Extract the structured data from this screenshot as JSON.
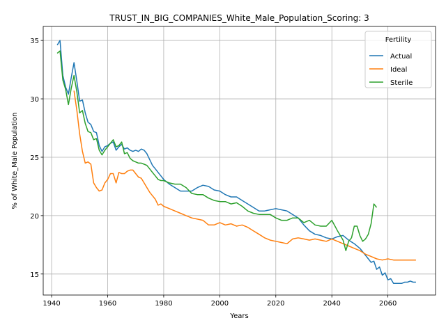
{
  "chart_data": {
    "type": "line",
    "title": "TRUST_IN_BIG_COMPANIES_White_Male_Population_Scoring: 3",
    "xlabel": "Years",
    "ylabel": "% of White_Male Population",
    "xlim": [
      1937,
      2077
    ],
    "ylim": [
      13.2,
      36.2
    ],
    "xticks": [
      1940,
      1960,
      1980,
      2000,
      2020,
      2040,
      2060
    ],
    "yticks": [
      15,
      20,
      25,
      30,
      35
    ],
    "grid": true,
    "legend": {
      "title": "Fertility",
      "placement": "top-right"
    },
    "series": [
      {
        "name": "Actual",
        "color": "#1f77b4",
        "x": [
          1942,
          1943,
          1944,
          1945,
          1946,
          1947,
          1948,
          1949,
          1950,
          1951,
          1952,
          1953,
          1954,
          1955,
          1956,
          1957,
          1958,
          1959,
          1960,
          1961,
          1962,
          1963,
          1964,
          1965,
          1966,
          1967,
          1968,
          1969,
          1970,
          1971,
          1972,
          1973,
          1974,
          1975,
          1976,
          1977,
          1978,
          1979,
          1980,
          1982,
          1984,
          1986,
          1988,
          1990,
          1992,
          1994,
          1996,
          1998,
          2000,
          2002,
          2004,
          2006,
          2008,
          2010,
          2012,
          2014,
          2016,
          2018,
          2020,
          2022,
          2024,
          2026,
          2028,
          2030,
          2032,
          2034,
          2036,
          2038,
          2040,
          2042,
          2044,
          2046,
          2048,
          2050,
          2052,
          2054,
          2055,
          2056,
          2057,
          2058,
          2059,
          2060,
          2061,
          2062,
          2063,
          2064,
          2065,
          2066,
          2067,
          2068,
          2069,
          2070
        ],
        "y": [
          34.6,
          35.0,
          32.0,
          31.0,
          30.4,
          31.8,
          33.1,
          31.5,
          29.8,
          29.9,
          28.8,
          28.0,
          27.8,
          27.2,
          27.1,
          26.0,
          25.5,
          25.9,
          26.0,
          26.2,
          26.3,
          25.6,
          25.9,
          26.1,
          25.7,
          25.8,
          25.6,
          25.5,
          25.6,
          25.5,
          25.7,
          25.6,
          25.3,
          24.8,
          24.3,
          24.0,
          23.7,
          23.4,
          23.1,
          22.7,
          22.4,
          22.1,
          22.1,
          22.1,
          22.4,
          22.6,
          22.5,
          22.2,
          22.1,
          21.8,
          21.6,
          21.6,
          21.3,
          21.0,
          20.7,
          20.4,
          20.4,
          20.5,
          20.6,
          20.5,
          20.4,
          20.1,
          19.8,
          19.2,
          18.7,
          18.4,
          18.3,
          18.1,
          18.0,
          18.2,
          18.3,
          17.9,
          17.6,
          17.2,
          16.6,
          16.0,
          16.1,
          15.4,
          15.6,
          14.9,
          15.1,
          14.5,
          14.6,
          14.2,
          14.2,
          14.2,
          14.2,
          14.3,
          14.3,
          14.4,
          14.3,
          14.3
        ]
      },
      {
        "name": "Ideal",
        "color": "#ff7f0e",
        "x": [
          1948,
          1949,
          1950,
          1951,
          1952,
          1953,
          1954,
          1955,
          1956,
          1957,
          1958,
          1959,
          1960,
          1961,
          1962,
          1963,
          1964,
          1965,
          1966,
          1967,
          1968,
          1969,
          1970,
          1971,
          1972,
          1973,
          1974,
          1975,
          1976,
          1977,
          1978,
          1979,
          1980,
          1982,
          1984,
          1986,
          1988,
          1990,
          1992,
          1994,
          1996,
          1998,
          2000,
          2002,
          2004,
          2006,
          2008,
          2010,
          2012,
          2014,
          2016,
          2018,
          2020,
          2022,
          2024,
          2026,
          2028,
          2030,
          2032,
          2034,
          2036,
          2038,
          2040,
          2042,
          2044,
          2046,
          2048,
          2050,
          2052,
          2054,
          2056,
          2058,
          2060,
          2062,
          2064,
          2066,
          2068,
          2070
        ],
        "y": [
          30.7,
          29.0,
          27.0,
          25.5,
          24.5,
          24.6,
          24.4,
          22.8,
          22.4,
          22.1,
          22.2,
          22.8,
          23.1,
          23.6,
          23.6,
          22.8,
          23.7,
          23.6,
          23.6,
          23.8,
          23.9,
          23.9,
          23.6,
          23.3,
          23.2,
          22.8,
          22.4,
          22.0,
          21.7,
          21.4,
          20.9,
          21.0,
          20.8,
          20.6,
          20.4,
          20.2,
          20.0,
          19.8,
          19.7,
          19.6,
          19.2,
          19.2,
          19.4,
          19.2,
          19.3,
          19.1,
          19.2,
          19.0,
          18.7,
          18.4,
          18.1,
          17.9,
          17.8,
          17.7,
          17.6,
          18.0,
          18.1,
          18.0,
          17.9,
          18.0,
          17.9,
          17.8,
          18.0,
          17.8,
          17.6,
          17.4,
          17.2,
          17.0,
          16.7,
          16.5,
          16.3,
          16.2,
          16.3,
          16.2,
          16.2,
          16.2,
          16.2,
          16.2
        ]
      },
      {
        "name": "Sterile",
        "color": "#2ca02c",
        "x": [
          1942,
          1943,
          1944,
          1945,
          1946,
          1947,
          1948,
          1949,
          1950,
          1951,
          1952,
          1953,
          1954,
          1955,
          1956,
          1957,
          1958,
          1959,
          1960,
          1961,
          1962,
          1963,
          1964,
          1965,
          1966,
          1967,
          1968,
          1969,
          1970,
          1971,
          1972,
          1973,
          1974,
          1975,
          1976,
          1977,
          1978,
          1979,
          1980,
          1982,
          1984,
          1986,
          1988,
          1990,
          1992,
          1994,
          1996,
          1998,
          2000,
          2002,
          2004,
          2006,
          2008,
          2010,
          2012,
          2014,
          2016,
          2018,
          2020,
          2022,
          2024,
          2026,
          2028,
          2030,
          2032,
          2034,
          2036,
          2038,
          2040,
          2042,
          2044,
          2045,
          2046,
          2047,
          2048,
          2049,
          2050,
          2051,
          2052,
          2053,
          2054,
          2055,
          2056
        ],
        "y": [
          33.9,
          34.1,
          31.6,
          30.8,
          29.5,
          30.9,
          32.0,
          30.6,
          28.8,
          29.0,
          27.9,
          27.2,
          27.1,
          26.5,
          26.6,
          25.6,
          25.2,
          25.6,
          25.9,
          26.2,
          26.5,
          25.9,
          26.0,
          26.3,
          25.3,
          25.4,
          24.9,
          24.7,
          24.6,
          24.5,
          24.5,
          24.4,
          24.3,
          24.0,
          23.7,
          23.4,
          23.1,
          23.0,
          23.0,
          22.8,
          22.7,
          22.7,
          22.4,
          21.9,
          21.8,
          21.8,
          21.5,
          21.3,
          21.2,
          21.2,
          21.0,
          21.1,
          20.8,
          20.4,
          20.2,
          20.1,
          20.1,
          20.1,
          19.8,
          19.6,
          19.6,
          19.8,
          19.8,
          19.4,
          19.6,
          19.2,
          19.1,
          19.1,
          19.6,
          18.7,
          17.9,
          17.0,
          17.8,
          18.1,
          19.1,
          19.1,
          18.3,
          17.8,
          18.0,
          18.4,
          19.3,
          21.0,
          20.7
        ]
      }
    ]
  }
}
